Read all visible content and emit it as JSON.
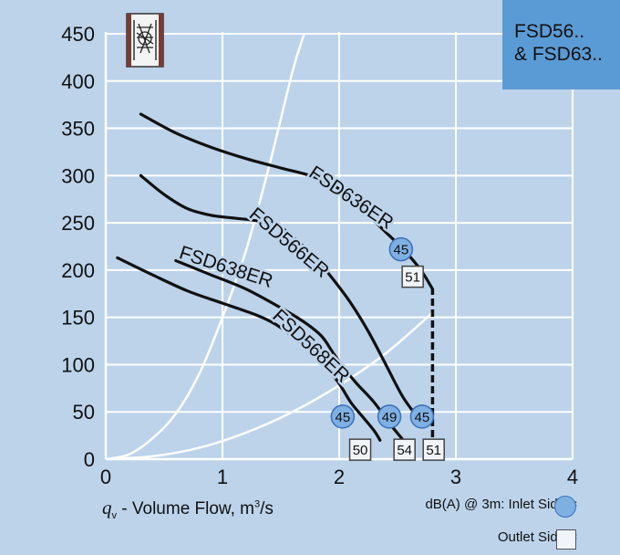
{
  "badge": {
    "line1": "FSD56..",
    "line2": "& FSD63.."
  },
  "xaxis": {
    "symbol": "q",
    "sub": "v",
    "label": " - Volume Flow, m",
    "unit_sup": "3",
    "unit_tail": "/s"
  },
  "legend": {
    "inlet": "dB(A) @ 3m: Inlet Side  =",
    "outlet": "Outlet Side ="
  },
  "colors": {
    "background": "#bcd3ea",
    "grid": "#ffffff",
    "curve": "#111111",
    "inlet_marker": "#7fb0e4",
    "badge": "#5b9bd5"
  },
  "icons": [
    "fan-unit-icon"
  ],
  "chart_data": {
    "type": "line",
    "title": "",
    "xlabel": "q_v - Volume Flow, m³/s",
    "ylabel": "",
    "xlim": [
      0,
      4
    ],
    "ylim": [
      0,
      450
    ],
    "xticks": [
      0,
      1,
      2,
      3,
      4
    ],
    "yticks": [
      0,
      50,
      100,
      150,
      200,
      250,
      300,
      350,
      400,
      450
    ],
    "grid": true,
    "series": [
      {
        "name": "FSD636ER",
        "x": [
          0.3,
          0.6,
          0.9,
          1.2,
          1.5,
          1.75,
          1.95,
          2.1,
          2.25,
          2.4,
          2.55,
          2.7,
          2.8
        ],
        "y": [
          365,
          345,
          330,
          318,
          308,
          300,
          290,
          275,
          258,
          240,
          222,
          200,
          180
        ]
      },
      {
        "name": "FSD566ER",
        "x": [
          0.3,
          0.5,
          0.7,
          0.9,
          1.1,
          1.3,
          1.5,
          1.65,
          1.8,
          1.95,
          2.1,
          2.25,
          2.4,
          2.55,
          2.7
        ],
        "y": [
          300,
          280,
          265,
          258,
          255,
          252,
          245,
          230,
          212,
          190,
          165,
          135,
          100,
          65,
          40
        ]
      },
      {
        "name": "FSD638ER",
        "x": [
          0.1,
          0.4,
          0.7,
          1.0,
          1.3,
          1.45,
          1.6,
          1.75,
          1.9,
          2.0,
          2.1,
          2.2,
          2.3,
          2.35
        ],
        "y": [
          213,
          195,
          178,
          165,
          152,
          143,
          130,
          115,
          95,
          80,
          60,
          45,
          30,
          20
        ]
      },
      {
        "name": "FSD568ER",
        "x": [
          0.6,
          0.9,
          1.2,
          1.5,
          1.7,
          1.85,
          1.95,
          2.05,
          2.15,
          2.3,
          2.45,
          2.55
        ],
        "y": [
          210,
          195,
          180,
          160,
          145,
          130,
          112,
          95,
          80,
          60,
          35,
          20
        ]
      }
    ],
    "system_curves": [
      {
        "x": [
          0,
          0.2,
          0.4,
          0.6,
          0.8,
          1.0,
          1.2,
          1.4,
          1.6,
          1.7
        ],
        "y": [
          0,
          5,
          22,
          48,
          90,
          150,
          220,
          310,
          410,
          450
        ]
      },
      {
        "x": [
          0,
          0.4,
          0.8,
          1.2,
          1.6,
          2.0,
          2.4,
          2.8
        ],
        "y": [
          0,
          3,
          12,
          28,
          50,
          78,
          112,
          155
        ]
      }
    ],
    "max_flow_line": {
      "x": [
        2.8,
        2.8
      ],
      "y": [
        0,
        180
      ]
    },
    "inlet_markers": [
      {
        "label": "45",
        "x": 2.53,
        "y": 222
      },
      {
        "label": "45",
        "x": 2.03,
        "y": 45
      },
      {
        "label": "49",
        "x": 2.43,
        "y": 45
      },
      {
        "label": "45",
        "x": 2.71,
        "y": 45
      }
    ],
    "outlet_markers": [
      {
        "label": "51",
        "x": 2.63,
        "y": 193
      },
      {
        "label": "50",
        "x": 2.18,
        "y": 10
      },
      {
        "label": "54",
        "x": 2.56,
        "y": 10
      },
      {
        "label": "51",
        "x": 2.81,
        "y": 10
      }
    ],
    "curve_labels": [
      {
        "text": "FSD636ER",
        "x": 1.73,
        "y": 300,
        "angle": 34
      },
      {
        "text": "FSD566ER",
        "x": 1.22,
        "y": 257,
        "angle": 40
      },
      {
        "text": "FSD638ER",
        "x": 0.62,
        "y": 213,
        "angle": 18
      },
      {
        "text": "FSD568ER",
        "x": 1.42,
        "y": 150,
        "angle": 43
      }
    ]
  }
}
